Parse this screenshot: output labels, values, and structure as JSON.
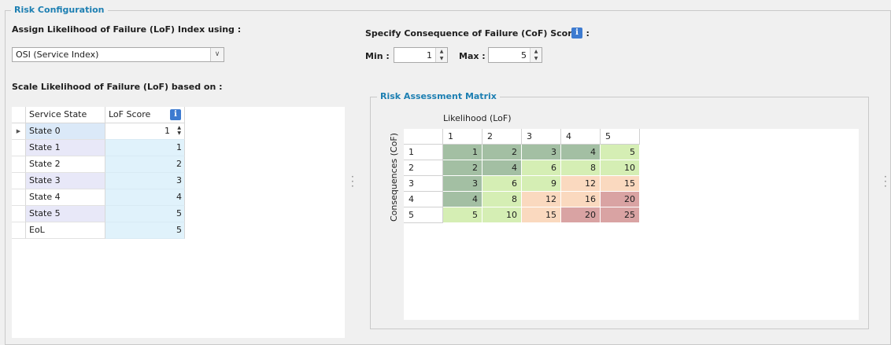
{
  "risk_configuration": {
    "title": "Risk Configuration"
  },
  "lof": {
    "assign_label": "Assign Likelihood of Failure (LoF) Index using :",
    "combo_value": "OSI (Service Index)",
    "scale_label": "Scale Likelihood of Failure (LoF) based on :",
    "columns": [
      "Service State",
      "LoF Score"
    ],
    "info_icon": "info-icon",
    "rows": [
      {
        "state": "State 0",
        "score": "1"
      },
      {
        "state": "State 1",
        "score": "1"
      },
      {
        "state": "State 2",
        "score": "2"
      },
      {
        "state": "State 3",
        "score": "3"
      },
      {
        "state": "State 4",
        "score": "4"
      },
      {
        "state": "State 5",
        "score": "5"
      },
      {
        "state": "EoL",
        "score": "5"
      }
    ]
  },
  "cof": {
    "label": "Specify Consequence of Failure (CoF) Scores :",
    "min_label": "Min :",
    "min_value": "1",
    "max_label": "Max :",
    "max_value": "5"
  },
  "matrix": {
    "title": "Risk Assessment Matrix",
    "x_label": "Likelihood (LoF)",
    "y_label": "Consequences (CoF)",
    "x_headers": [
      "1",
      "2",
      "3",
      "4",
      "5"
    ],
    "y_headers": [
      "1",
      "2",
      "3",
      "4",
      "5"
    ],
    "values": [
      [
        "1",
        "2",
        "3",
        "4",
        "5"
      ],
      [
        "2",
        "4",
        "6",
        "8",
        "10"
      ],
      [
        "3",
        "6",
        "9",
        "12",
        "15"
      ],
      [
        "4",
        "8",
        "12",
        "16",
        "20"
      ],
      [
        "5",
        "10",
        "15",
        "20",
        "25"
      ]
    ],
    "levels": [
      [
        "g",
        "g",
        "g",
        "g",
        "l"
      ],
      [
        "g",
        "g",
        "l",
        "l",
        "l"
      ],
      [
        "g",
        "l",
        "l",
        "o",
        "o"
      ],
      [
        "g",
        "l",
        "o",
        "o",
        "r"
      ],
      [
        "l",
        "l",
        "o",
        "r",
        "r"
      ]
    ],
    "colors": {
      "g": "#a3bfa3",
      "l": "#d5eeb4",
      "o": "#fad9bf",
      "r": "#d9a3a3"
    }
  }
}
